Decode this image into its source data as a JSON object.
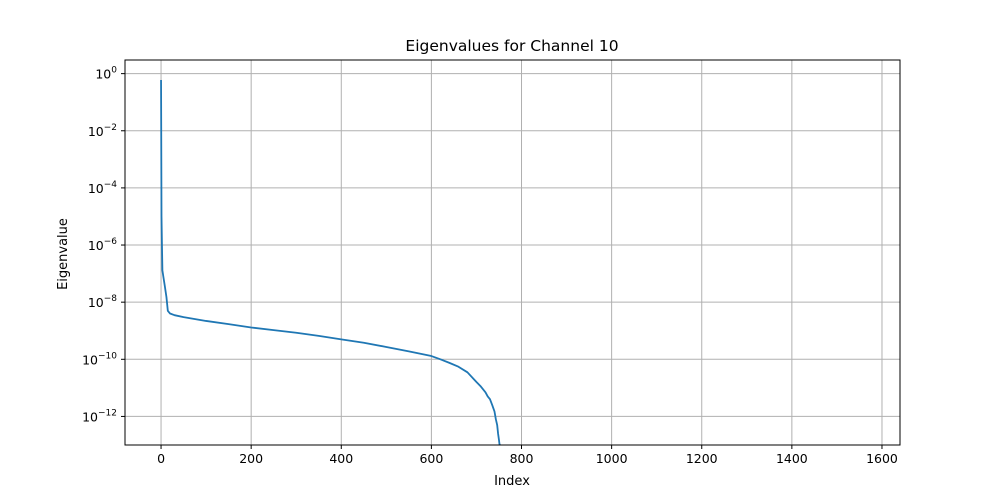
{
  "chart_data": {
    "type": "line",
    "title": "Eigenvalues for Channel 10",
    "xlabel": "Index",
    "ylabel": "Eigenvalue",
    "xlim": [
      -80,
      1640
    ],
    "ylim": [
      1e-13,
      3
    ],
    "yscale": "log",
    "grid": true,
    "x_ticks": [
      0,
      200,
      400,
      600,
      800,
      1000,
      1200,
      1400,
      1600
    ],
    "y_ticks": [
      {
        "value": 1,
        "mantissa": "10",
        "exp": "0"
      },
      {
        "value": 0.01,
        "mantissa": "10",
        "exp": "−2"
      },
      {
        "value": 0.0001,
        "mantissa": "10",
        "exp": "−4"
      },
      {
        "value": 1e-06,
        "mantissa": "10",
        "exp": "−6"
      },
      {
        "value": 1e-08,
        "mantissa": "10",
        "exp": "−8"
      },
      {
        "value": 1e-10,
        "mantissa": "10",
        "exp": "−10"
      },
      {
        "value": 1e-12,
        "mantissa": "10",
        "exp": "−12"
      }
    ],
    "series": [
      {
        "color": "#1f77b4",
        "x": [
          0,
          1,
          2,
          3,
          5,
          8,
          12,
          15,
          20,
          30,
          50,
          100,
          150,
          200,
          250,
          300,
          350,
          400,
          450,
          500,
          550,
          600,
          620,
          640,
          660,
          680,
          700,
          710,
          720,
          725,
          730,
          735,
          740,
          743,
          746,
          748,
          750,
          751,
          752
        ],
        "y": [
          0.6,
          1e-05,
          1e-06,
          1.3e-07,
          8e-08,
          4e-08,
          1.5e-08,
          5e-09,
          4e-09,
          3.5e-09,
          3e-09,
          2.2e-09,
          1.7e-09,
          1.3e-09,
          1.05e-09,
          8.5e-10,
          6.6e-10,
          5e-10,
          3.8e-10,
          2.7e-10,
          1.9e-10,
          1.3e-10,
          1e-10,
          7.5e-11,
          5.5e-11,
          3.5e-11,
          1.6e-11,
          1.1e-11,
          7e-12,
          5e-12,
          4e-12,
          2.5e-12,
          1.5e-12,
          8e-13,
          5e-13,
          2.5e-13,
          1.5e-13,
          1.1e-13,
          1e-13
        ]
      }
    ]
  }
}
